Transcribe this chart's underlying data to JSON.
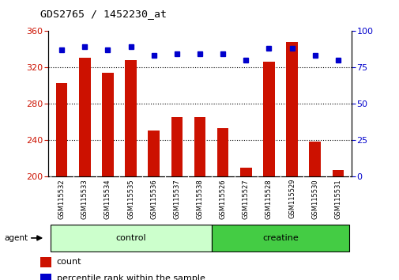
{
  "title": "GDS2765 / 1452230_at",
  "categories": [
    "GSM115532",
    "GSM115533",
    "GSM115534",
    "GSM115535",
    "GSM115536",
    "GSM115537",
    "GSM115538",
    "GSM115526",
    "GSM115527",
    "GSM115528",
    "GSM115529",
    "GSM115530",
    "GSM115531"
  ],
  "bar_values": [
    303,
    330,
    314,
    328,
    250,
    265,
    265,
    253,
    210,
    326,
    348,
    238,
    207
  ],
  "dot_values": [
    87,
    89,
    87,
    89,
    83,
    84,
    84,
    84,
    80,
    88,
    88,
    83,
    80
  ],
  "bar_color": "#cc1100",
  "dot_color": "#0000cc",
  "ylim_left": [
    200,
    360
  ],
  "ylim_right": [
    0,
    100
  ],
  "yticks_left": [
    200,
    240,
    280,
    320,
    360
  ],
  "yticks_right": [
    0,
    25,
    50,
    75,
    100
  ],
  "group_labels": [
    "control",
    "creatine"
  ],
  "group_colors_light": "#ccffcc",
  "group_colors_dark": "#44cc44",
  "group_sizes": [
    7,
    6
  ],
  "agent_label": "agent",
  "legend_count_label": "count",
  "legend_pct_label": "percentile rank within the sample",
  "bg_color": "#ffffff",
  "plot_bg": "#ffffff",
  "tick_label_color_left": "#cc1100",
  "tick_label_color_right": "#0000cc",
  "title_color": "#000000",
  "bar_bottom": 200,
  "xlabel_bg": "#cccccc"
}
